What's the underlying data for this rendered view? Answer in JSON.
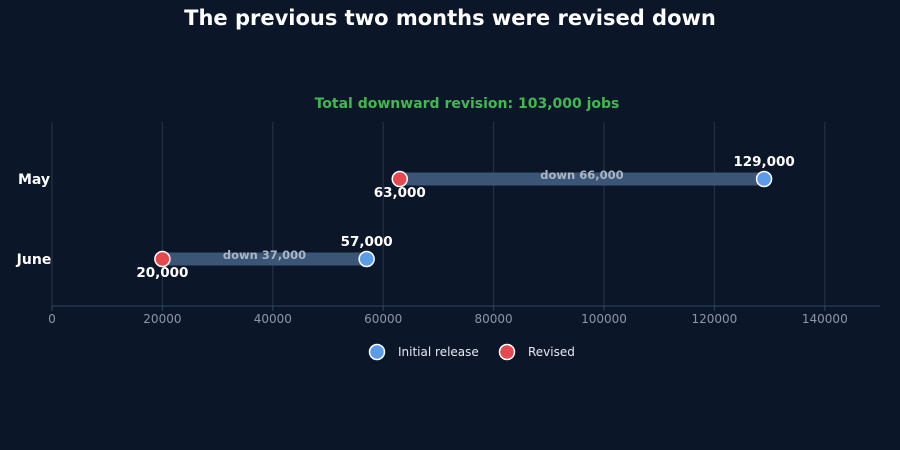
{
  "colors": {
    "background": "#0b1628",
    "initial": "#5b9ce8",
    "revised": "#e5484d",
    "bar": "#3a5575",
    "subtitle": "#3fb950"
  },
  "chart_data": {
    "type": "dumbbell",
    "title": "The previous two months were revised down",
    "subtitle": "Total downward revision: 103,000 jobs",
    "xlabel": "",
    "ylabel": "",
    "xlim": [
      0,
      150000
    ],
    "xticks": [
      0,
      20000,
      40000,
      60000,
      80000,
      100000,
      120000,
      140000
    ],
    "xtick_labels": [
      "0",
      "20000",
      "40000",
      "60000",
      "80000",
      "100000",
      "120000",
      "140000"
    ],
    "grid": "vertical",
    "legend_position": "bottom-center",
    "categories": [
      "May",
      "June"
    ],
    "series": [
      {
        "name": "Initial release",
        "values": [
          129000,
          57000
        ],
        "labels": [
          "129,000",
          "57,000"
        ]
      },
      {
        "name": "Revised",
        "values": [
          63000,
          20000
        ],
        "labels": [
          "63,000",
          "20,000"
        ]
      }
    ],
    "annotations": [
      "down 66,000",
      "down 37,000"
    ]
  }
}
